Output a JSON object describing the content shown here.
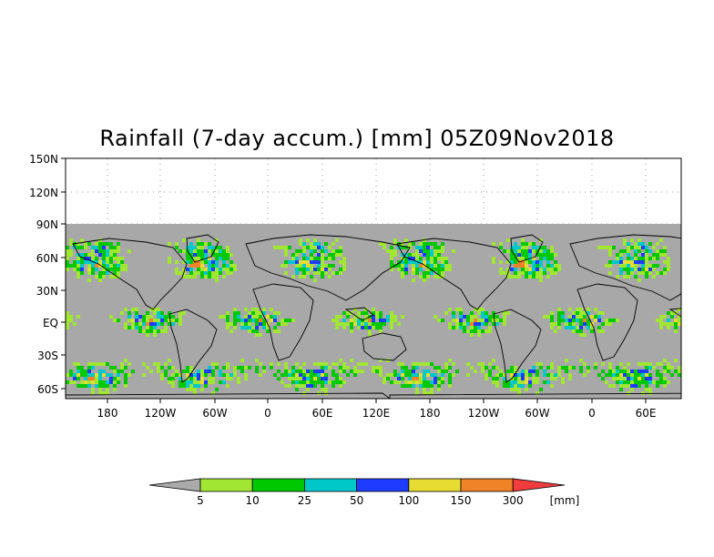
{
  "title": "Rainfall (7-day accum.) [mm] 05Z09Nov2018",
  "latitude_labels": [
    "150N",
    "120N",
    "90N",
    "60N",
    "30N",
    "EQ",
    "30S",
    "60S"
  ],
  "longitude_labels": [
    "180",
    "120W",
    "60W",
    "0",
    "60E",
    "120E",
    "180",
    "120W",
    "60W",
    "0",
    "60E"
  ],
  "colorbar": {
    "labels": [
      "5",
      "10",
      "25",
      "50",
      "100",
      "150",
      "300"
    ],
    "unit": "[mm]",
    "colors": {
      "below": "#aaaaaa",
      "bins": [
        "#a0e632",
        "#00c800",
        "#00c8c8",
        "#1e3cff",
        "#e6dc32",
        "#f08228"
      ],
      "above": "#f03c3c"
    }
  },
  "colors": {
    "ocean_gray": "#a8a8a8",
    "land_outline": "#000000",
    "frame": "#000000"
  }
}
